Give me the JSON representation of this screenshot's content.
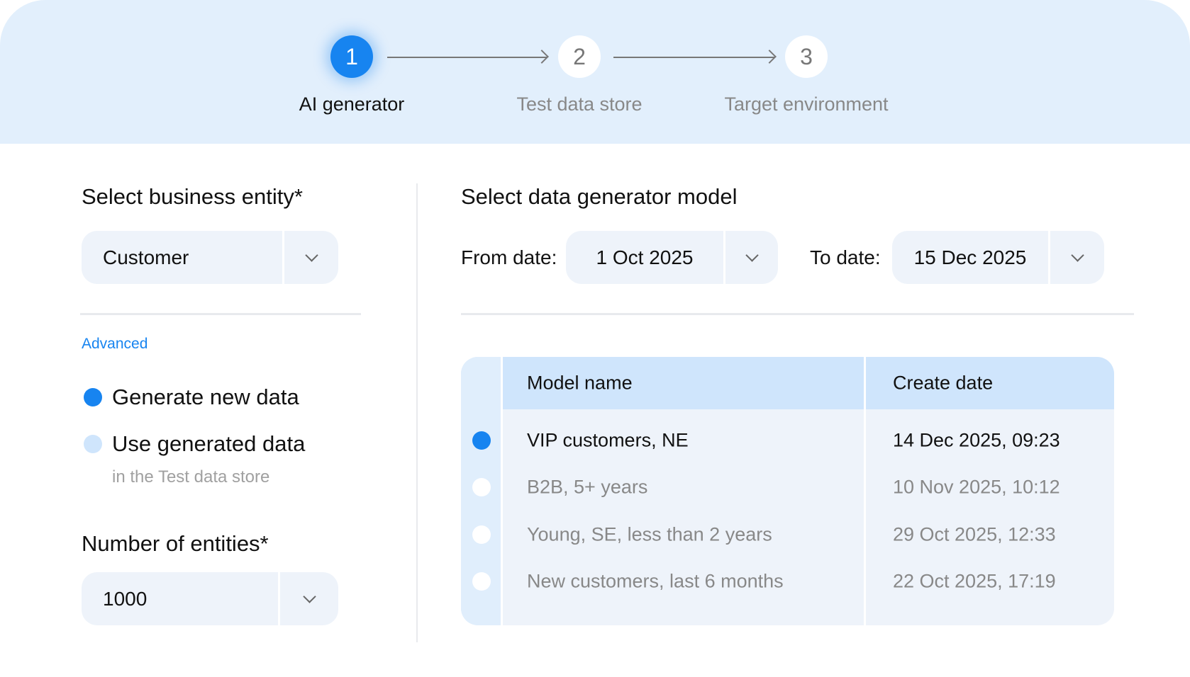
{
  "stepper": {
    "steps": [
      {
        "number": "1",
        "label": "AI generator",
        "active": true
      },
      {
        "number": "2",
        "label": "Test data store",
        "active": false
      },
      {
        "number": "3",
        "label": "Target environment",
        "active": false
      }
    ]
  },
  "left": {
    "entity_title": "Select business entity*",
    "entity_value": "Customer",
    "advanced_link": "Advanced",
    "options": [
      {
        "label": "Generate new data",
        "selected": true
      },
      {
        "label": "Use generated data",
        "sublabel": "in the Test data store",
        "selected": false
      }
    ],
    "count_title": "Number of entities*",
    "count_value": "1000"
  },
  "right": {
    "title": "Select data generator model",
    "from_label": "From date:",
    "from_value": "1 Oct 2025",
    "to_label": "To date:",
    "to_value": "15 Dec 2025",
    "table": {
      "columns": [
        "Model name",
        "Create date"
      ],
      "rows": [
        {
          "name": "VIP customers, NE",
          "date": "14 Dec 2025, 09:23",
          "selected": true
        },
        {
          "name": "B2B, 5+ years",
          "date": "10 Nov 2025, 10:12",
          "selected": false
        },
        {
          "name": "Young, SE, less than 2 years",
          "date": "29 Oct 2025, 12:33",
          "selected": false
        },
        {
          "name": "New customers, last 6 months",
          "date": "22 Oct 2025, 17:19",
          "selected": false
        }
      ]
    }
  },
  "colors": {
    "accent": "#1784f0",
    "header_bg": "#e2effc",
    "field_bg": "#eef3fa",
    "table_header": "#cfe5fc"
  }
}
